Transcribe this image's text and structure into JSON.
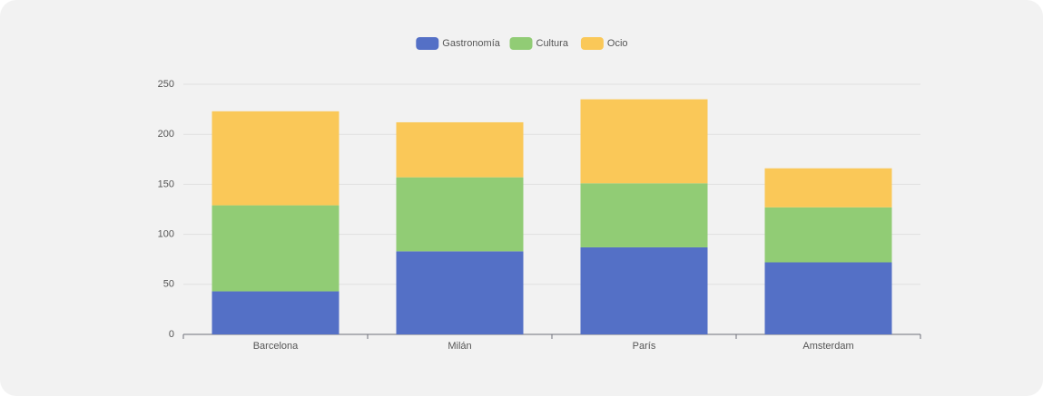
{
  "chart_data": {
    "type": "stacked-bar",
    "categories": [
      "Barcelona",
      "Milán",
      "París",
      "Amsterdam"
    ],
    "series": [
      {
        "name": "Gastronomía",
        "color": "#5470c6",
        "values": [
          43,
          83,
          87,
          72
        ]
      },
      {
        "name": "Cultura",
        "color": "#91cc75",
        "values": [
          86,
          74,
          64,
          55
        ]
      },
      {
        "name": "Ocio",
        "color": "#fac858",
        "values": [
          94,
          55,
          84,
          39
        ]
      }
    ],
    "ylim": [
      0,
      250
    ],
    "yticks": [
      0,
      50,
      100,
      150,
      200,
      250
    ],
    "grid": true,
    "legend": "top"
  }
}
